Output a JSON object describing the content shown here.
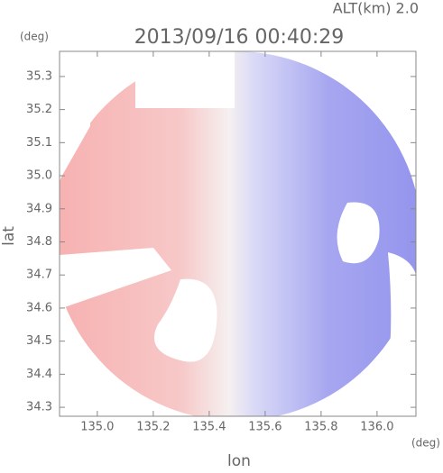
{
  "chart_data": {
    "type": "map",
    "title": "2013/09/16 00:40:29",
    "subtitle": "ALT(km) 2.0",
    "x_label": "lon",
    "y_label": "lat",
    "x_unit": "(deg)",
    "y_unit": "(deg)",
    "xlim": [
      134.865,
      136.139
    ],
    "ylim": [
      34.273,
      35.376
    ],
    "xticks": [
      {
        "value": 135.0,
        "label": "135.0"
      },
      135.2,
      135.4,
      135.6,
      135.8,
      {
        "value": 136.0,
        "label": "136.0"
      }
    ],
    "yticks": [
      34.3,
      34.4,
      34.5,
      34.6,
      34.7,
      34.8,
      34.9,
      {
        "value": 35.0,
        "label": "35.0"
      },
      35.1,
      35.2,
      35.3
    ]
  }
}
